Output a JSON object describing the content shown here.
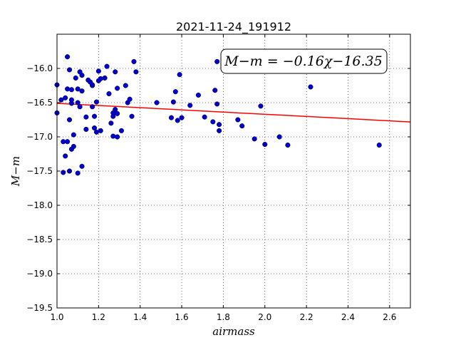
{
  "chart_data": {
    "type": "scatter",
    "title": "2021-11-24_191912",
    "xlabel": "airmass",
    "ylabel": "M−m",
    "xlim": [
      1.0,
      2.7
    ],
    "ylim": [
      -19.5,
      -15.5
    ],
    "y_inverted": true,
    "grid": true,
    "x_ticks": [
      1.0,
      1.2,
      1.4,
      1.6,
      1.8,
      2.0,
      2.2,
      2.4,
      2.6
    ],
    "y_ticks": [
      -16.0,
      -16.5,
      -17.0,
      -17.5,
      -18.0,
      -18.5,
      -19.0,
      -19.5
    ],
    "x_tick_labels": [
      "1.0",
      "1.2",
      "1.4",
      "1.6",
      "1.8",
      "2.0",
      "2.2",
      "2.4",
      "2.6"
    ],
    "y_tick_labels": [
      "−16.0",
      "−16.5",
      "−17.0",
      "−17.5",
      "−18.0",
      "−18.5",
      "−19.0",
      "−19.5"
    ],
    "annotation": "M−m = −0.16χ−16.35",
    "fit": {
      "slope": -0.16,
      "intercept": -16.35,
      "color": "#ff0000"
    },
    "point_color": "#0000cc",
    "points": [
      [
        1.0,
        -16.24
      ],
      [
        1.0,
        -16.65
      ],
      [
        1.02,
        -16.46
      ],
      [
        1.03,
        -17.07
      ],
      [
        1.03,
        -17.52
      ],
      [
        1.04,
        -16.43
      ],
      [
        1.04,
        -17.28
      ],
      [
        1.05,
        -15.83
      ],
      [
        1.05,
        -17.07
      ],
      [
        1.05,
        -16.3
      ],
      [
        1.06,
        -16.02
      ],
      [
        1.06,
        -16.75
      ],
      [
        1.06,
        -17.5
      ],
      [
        1.07,
        -16.51
      ],
      [
        1.07,
        -16.31
      ],
      [
        1.07,
        -16.46
      ],
      [
        1.07,
        -17.18
      ],
      [
        1.08,
        -17.14
      ],
      [
        1.08,
        -16.97
      ],
      [
        1.09,
        -16.14
      ],
      [
        1.1,
        -16.3
      ],
      [
        1.1,
        -16.5
      ],
      [
        1.1,
        -17.53
      ],
      [
        1.11,
        -16.56
      ],
      [
        1.11,
        -16.05
      ],
      [
        1.12,
        -16.33
      ],
      [
        1.12,
        -16.1
      ],
      [
        1.12,
        -17.43
      ],
      [
        1.14,
        -16.71
      ],
      [
        1.14,
        -16.89
      ],
      [
        1.15,
        -16.17
      ],
      [
        1.16,
        -16.2
      ],
      [
        1.17,
        -16.25
      ],
      [
        1.17,
        -16.24
      ],
      [
        1.17,
        -16.56
      ],
      [
        1.18,
        -16.87
      ],
      [
        1.18,
        -16.7
      ],
      [
        1.19,
        -16.49
      ],
      [
        1.19,
        -16.93
      ],
      [
        1.2,
        -16.18
      ],
      [
        1.2,
        -16.04
      ],
      [
        1.21,
        -16.15
      ],
      [
        1.21,
        -16.91
      ],
      [
        1.23,
        -16.14
      ],
      [
        1.24,
        -15.97
      ],
      [
        1.25,
        -16.37
      ],
      [
        1.26,
        -16.8
      ],
      [
        1.27,
        -16.65
      ],
      [
        1.27,
        -16.7
      ],
      [
        1.27,
        -16.99
      ],
      [
        1.28,
        -16.6
      ],
      [
        1.28,
        -16.05
      ],
      [
        1.29,
        -16.29
      ],
      [
        1.29,
        -16.66
      ],
      [
        1.29,
        -17.0
      ],
      [
        1.31,
        -16.91
      ],
      [
        1.33,
        -16.25
      ],
      [
        1.34,
        -16.5
      ],
      [
        1.35,
        -16.45
      ],
      [
        1.36,
        -16.7
      ],
      [
        1.37,
        -15.9
      ],
      [
        1.38,
        -16.05
      ],
      [
        1.48,
        -16.5
      ],
      [
        1.55,
        -16.72
      ],
      [
        1.56,
        -16.49
      ],
      [
        1.57,
        -16.34
      ],
      [
        1.58,
        -16.76
      ],
      [
        1.59,
        -16.09
      ],
      [
        1.6,
        -16.72
      ],
      [
        1.64,
        -16.54
      ],
      [
        1.68,
        -16.39
      ],
      [
        1.71,
        -16.71
      ],
      [
        1.75,
        -16.78
      ],
      [
        1.76,
        -16.32
      ],
      [
        1.77,
        -15.9
      ],
      [
        1.77,
        -16.52
      ],
      [
        1.78,
        -16.82
      ],
      [
        1.78,
        -16.91
      ],
      [
        1.87,
        -16.75
      ],
      [
        1.89,
        -16.84
      ],
      [
        1.95,
        -17.03
      ],
      [
        1.98,
        -16.55
      ],
      [
        2.0,
        -17.11
      ],
      [
        2.07,
        -17.0
      ],
      [
        2.11,
        -17.12
      ],
      [
        2.22,
        -16.27
      ],
      [
        2.55,
        -17.12
      ]
    ]
  }
}
